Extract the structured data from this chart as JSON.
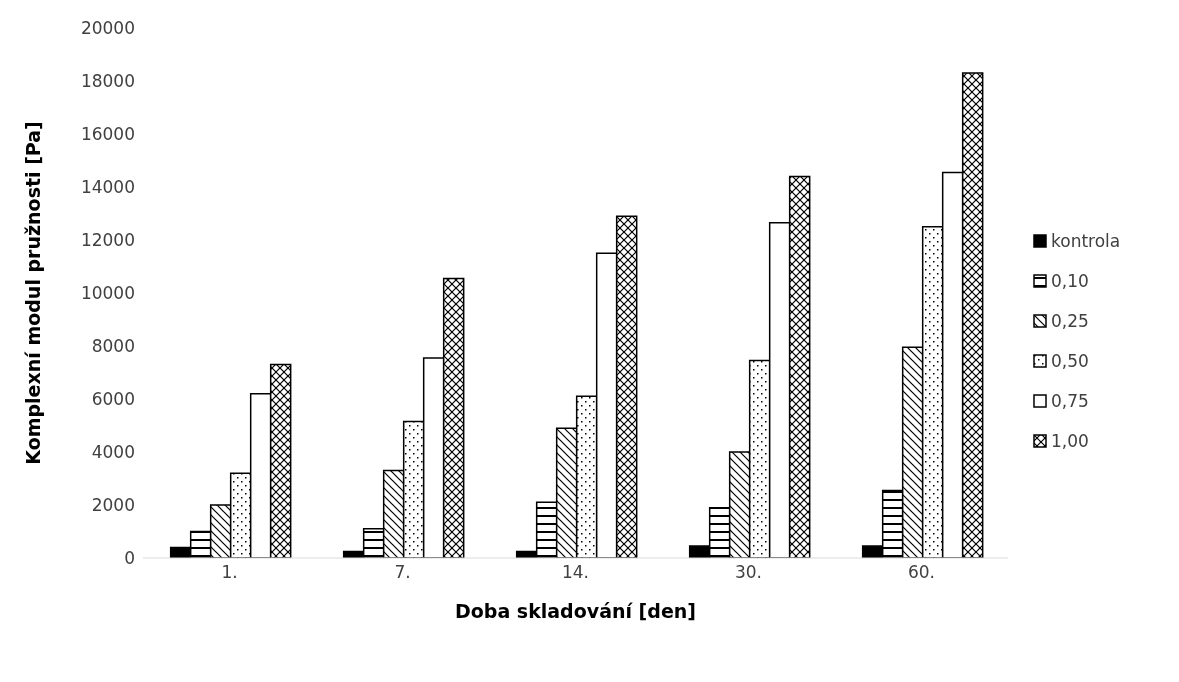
{
  "chart_data": {
    "type": "bar",
    "xlabel": "Doba skladování [den]",
    "ylabel": "Komplexní modul pružnosti [Pa]",
    "categories": [
      "1.",
      "7.",
      "14.",
      "30.",
      "60."
    ],
    "series": [
      {
        "name": "kontrola",
        "color": "#000000",
        "values": [
          400,
          250,
          250,
          450,
          450
        ]
      },
      {
        "name": "0,10",
        "color": "#000000",
        "values": [
          1000,
          1100,
          2100,
          1900,
          2550
        ]
      },
      {
        "name": "0,25",
        "color": "#000000",
        "values": [
          2000,
          3300,
          4900,
          4000,
          7950
        ]
      },
      {
        "name": "0,50",
        "color": "#000000",
        "values": [
          3200,
          5150,
          6100,
          7450,
          12500
        ]
      },
      {
        "name": "0,75",
        "color": "#000000",
        "values": [
          6200,
          7550,
          11500,
          12650,
          14550
        ]
      },
      {
        "name": "1,00",
        "color": "#000000",
        "values": [
          7300,
          10550,
          12900,
          14400,
          18300
        ]
      }
    ],
    "ylim": [
      0,
      20000
    ],
    "yticks": [
      0,
      2000,
      4000,
      6000,
      8000,
      10000,
      12000,
      14000,
      16000,
      18000,
      20000
    ],
    "grid": false,
    "legend": "right"
  }
}
